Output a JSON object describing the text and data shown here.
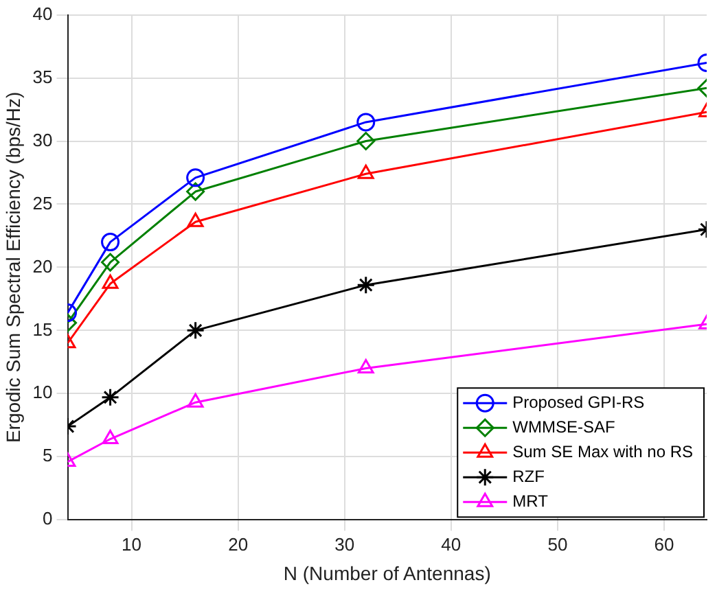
{
  "chart_data": {
    "type": "line",
    "xlabel": "N (Number of Antennas)",
    "ylabel": "Ergodic Sum Spectral Efficiency (bps/Hz)",
    "x": [
      4,
      8,
      16,
      32,
      64
    ],
    "series": [
      {
        "name": "Proposed GPI-RS",
        "color": "#0000ff",
        "marker": "circle",
        "values": [
          16.4,
          22.0,
          27.1,
          31.5,
          36.2
        ]
      },
      {
        "name": "WMMSE-SAF",
        "color": "#008000",
        "marker": "diamond",
        "values": [
          15.6,
          20.4,
          26.0,
          30.0,
          34.2
        ]
      },
      {
        "name": "Sum SE Max with no RS",
        "color": "#ff0000",
        "marker": "triangle",
        "values": [
          14.0,
          18.7,
          23.6,
          27.4,
          32.3
        ]
      },
      {
        "name": "RZF",
        "color": "#000000",
        "marker": "cross",
        "values": [
          7.4,
          9.7,
          15.0,
          18.6,
          23.0
        ]
      },
      {
        "name": "MRT",
        "color": "#ff00ff",
        "marker": "triangle",
        "values": [
          4.6,
          6.4,
          9.3,
          12.0,
          15.5
        ]
      }
    ],
    "xlim": [
      4,
      64
    ],
    "xticks": [
      10,
      20,
      30,
      40,
      50,
      60
    ],
    "ylim": [
      0,
      40
    ],
    "yticks": [
      0,
      5,
      10,
      15,
      20,
      25,
      30,
      35,
      40
    ],
    "grid": true,
    "legend": "bottom right",
    "line_style": "solid"
  }
}
